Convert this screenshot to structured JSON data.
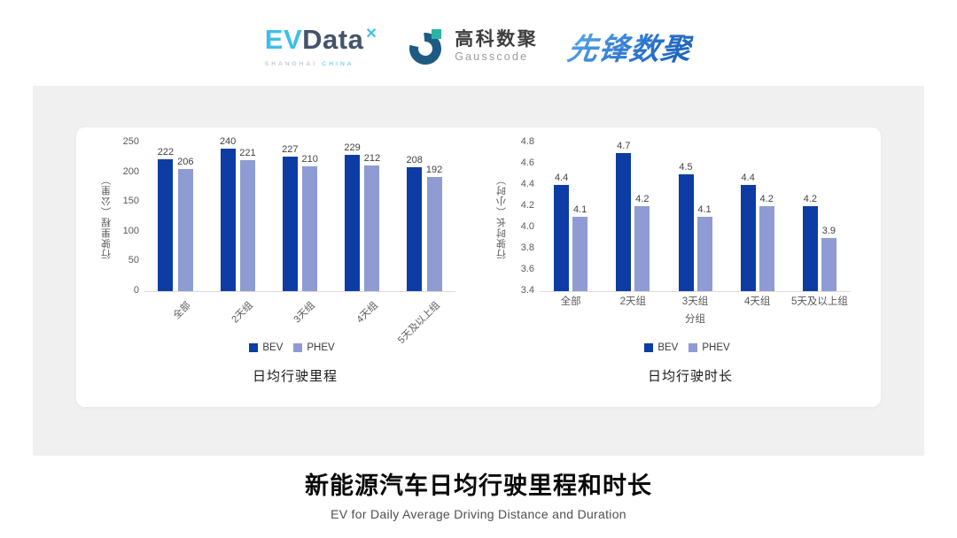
{
  "header": {
    "evdata": {
      "ev": "EV",
      "data": "Data",
      "xmark": "✕",
      "sub_left": "SHANGHAI",
      "sub_right": "CHINA"
    },
    "gausscode": {
      "cn": "高科数聚",
      "en": "Gausscode"
    },
    "xianfeng": {
      "text": "先锋数聚"
    }
  },
  "colors": {
    "bev": "#0D3CA5",
    "phev": "#8F9BD3",
    "panel_bg": "#F0F0F0",
    "axis_text": "#595959",
    "value_label": "#404040",
    "evdata_blue": "#3FBEEA",
    "evdata_dark": "#44546A",
    "gauss_arc": "#1E5B82",
    "gauss_square": "#2BB3A3"
  },
  "chart_data": [
    {
      "type": "bar",
      "title": "日均行驶里程",
      "ylabel": "行驶里程（公里）",
      "xlabel": "",
      "categories": [
        "全部",
        "2天组",
        "3天组",
        "4天组",
        "5天及以上组"
      ],
      "series": [
        {
          "name": "BEV",
          "values": [
            222,
            240,
            227,
            229,
            208
          ]
        },
        {
          "name": "PHEV",
          "values": [
            206,
            221,
            210,
            212,
            192
          ]
        }
      ],
      "ylim": [
        0,
        250
      ],
      "ytick_labels": [
        "0",
        "50",
        "100",
        "150",
        "200",
        "250"
      ],
      "rotated_xticks": true,
      "grid": false,
      "legend_position": "bottom"
    },
    {
      "type": "bar",
      "title": "日均行驶时长",
      "ylabel": "行驶时长（小时）",
      "xlabel": "分组",
      "categories": [
        "全部",
        "2天组",
        "3天组",
        "4天组",
        "5天及以上组"
      ],
      "series": [
        {
          "name": "BEV",
          "values": [
            4.4,
            4.7,
            4.5,
            4.4,
            4.2
          ]
        },
        {
          "name": "PHEV",
          "values": [
            4.1,
            4.2,
            4.1,
            4.2,
            3.9
          ]
        }
      ],
      "ylim": [
        3.4,
        4.8
      ],
      "ytick_labels": [
        "3.4",
        "3.6",
        "3.8",
        "4.0",
        "4.2",
        "4.4",
        "4.6",
        "4.8"
      ],
      "rotated_xticks": false,
      "grid": false,
      "legend_position": "bottom"
    }
  ],
  "footer": {
    "title": "新能源汽车日均行驶里程和时长",
    "subtitle": "EV for Daily Average Driving Distance and Duration"
  }
}
